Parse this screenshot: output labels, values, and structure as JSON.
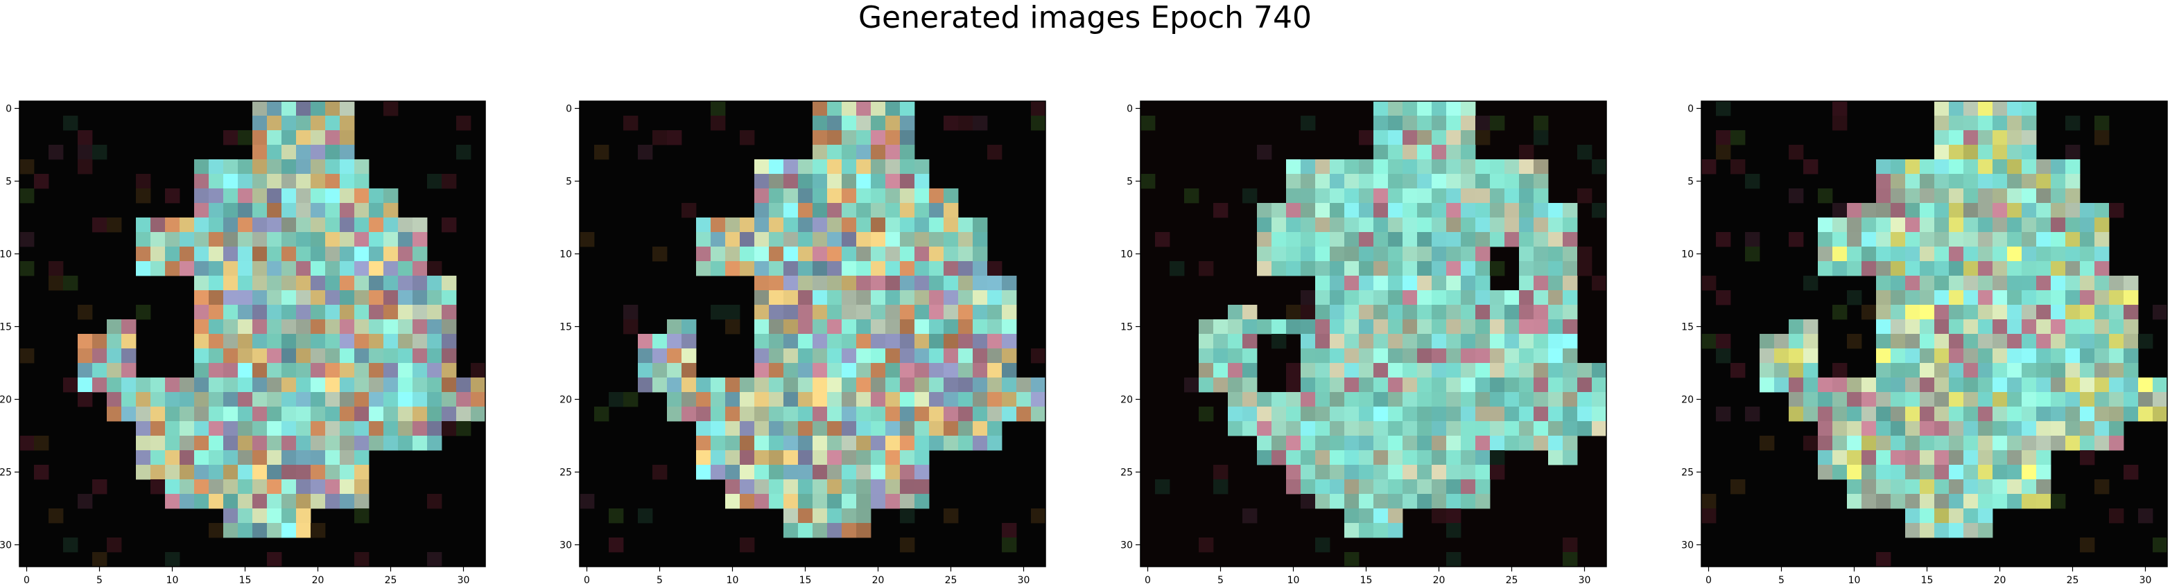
{
  "figure": {
    "title": "Generated images Epoch 740"
  },
  "chart_data": [
    {
      "type": "heatmap",
      "title": "",
      "x_ticks": [
        0,
        5,
        10,
        15,
        20,
        25,
        30
      ],
      "y_ticks": [
        0,
        5,
        10,
        15,
        20,
        25,
        30
      ],
      "xlim": [
        -0.5,
        31.5
      ],
      "ylim": [
        31.5,
        -0.5
      ],
      "grid_size": [
        32,
        32
      ],
      "background_color": "#050505",
      "shape_rows": [
        [
          16,
          23
        ],
        [
          16,
          23
        ],
        [
          16,
          23
        ],
        [
          16,
          23
        ],
        [
          12,
          24
        ],
        [
          12,
          24
        ],
        [
          12,
          26
        ],
        [
          12,
          26
        ],
        [
          8,
          28
        ],
        [
          8,
          28
        ],
        [
          8,
          28
        ],
        [
          8,
          28
        ],
        [
          8,
          30
        ],
        [
          8,
          30
        ],
        [
          8,
          30
        ],
        [
          6,
          30
        ],
        [
          4,
          30
        ],
        [
          4,
          30
        ],
        [
          4,
          30
        ],
        [
          4,
          32
        ],
        [
          6,
          32
        ],
        [
          6,
          32
        ],
        [
          8,
          29
        ],
        [
          8,
          29
        ],
        [
          8,
          26
        ],
        [
          8,
          26
        ],
        [
          10,
          26
        ],
        [
          10,
          26
        ],
        [
          14,
          20
        ],
        [
          14,
          20
        ],
        [
          0,
          0
        ],
        [
          0,
          0
        ]
      ],
      "holes": [
        [
          12,
          16,
          4,
          6
        ],
        [
          12,
          19,
          8,
          12
        ],
        [
          7,
          11,
          6,
          8
        ],
        [
          24,
          28,
          24,
          28
        ]
      ],
      "palette": [
        "#7ed9c6",
        "#8fe3cf",
        "#9ad1b8",
        "#6ec9c0",
        "#a7b6a3",
        "#c7d4a8",
        "#e0c37a",
        "#c9875a",
        "#6fa6b8",
        "#8a8fb8",
        "#b87a8c",
        "#7fe0e0"
      ],
      "seed": 11
    },
    {
      "type": "heatmap",
      "title": "",
      "x_ticks": [
        0,
        5,
        10,
        15,
        20,
        25,
        30
      ],
      "y_ticks": [
        0,
        5,
        10,
        15,
        20,
        25,
        30
      ],
      "xlim": [
        -0.5,
        31.5
      ],
      "ylim": [
        31.5,
        -0.5
      ],
      "grid_size": [
        32,
        32
      ],
      "background_color": "#050505",
      "shape_rows": [
        [
          16,
          23
        ],
        [
          16,
          23
        ],
        [
          16,
          23
        ],
        [
          16,
          23
        ],
        [
          12,
          24
        ],
        [
          12,
          24
        ],
        [
          12,
          26
        ],
        [
          12,
          26
        ],
        [
          8,
          28
        ],
        [
          8,
          28
        ],
        [
          8,
          28
        ],
        [
          8,
          28
        ],
        [
          8,
          30
        ],
        [
          8,
          30
        ],
        [
          8,
          30
        ],
        [
          6,
          30
        ],
        [
          4,
          30
        ],
        [
          4,
          30
        ],
        [
          4,
          30
        ],
        [
          4,
          32
        ],
        [
          6,
          32
        ],
        [
          6,
          32
        ],
        [
          8,
          29
        ],
        [
          8,
          29
        ],
        [
          8,
          26
        ],
        [
          8,
          26
        ],
        [
          10,
          26
        ],
        [
          10,
          26
        ],
        [
          14,
          20
        ],
        [
          14,
          20
        ],
        [
          0,
          0
        ],
        [
          0,
          0
        ]
      ],
      "holes": [
        [
          12,
          16,
          4,
          6
        ],
        [
          12,
          19,
          8,
          12
        ],
        [
          7,
          11,
          6,
          8
        ],
        [
          24,
          28,
          24,
          28
        ]
      ],
      "palette": [
        "#7ed9c6",
        "#8fe3cf",
        "#9ad1b8",
        "#6ec9c0",
        "#a7b6a3",
        "#c7d4a8",
        "#e0c37a",
        "#c9875a",
        "#6fa6b8",
        "#8a8fb8",
        "#b87a8c",
        "#7fe0e0"
      ],
      "seed": 23
    },
    {
      "type": "heatmap",
      "title": "",
      "x_ticks": [
        0,
        5,
        10,
        15,
        20,
        25,
        30
      ],
      "y_ticks": [
        0,
        5,
        10,
        15,
        20,
        25,
        30
      ],
      "xlim": [
        -0.5,
        31.5
      ],
      "ylim": [
        31.5,
        -0.5
      ],
      "grid_size": [
        32,
        32
      ],
      "background_color": "#0a0505",
      "shape_rows": [
        [
          16,
          23
        ],
        [
          16,
          23
        ],
        [
          16,
          23
        ],
        [
          16,
          23
        ],
        [
          10,
          28
        ],
        [
          10,
          28
        ],
        [
          10,
          28
        ],
        [
          8,
          30
        ],
        [
          8,
          30
        ],
        [
          8,
          30
        ],
        [
          8,
          30
        ],
        [
          8,
          30
        ],
        [
          8,
          30
        ],
        [
          8,
          30
        ],
        [
          6,
          30
        ],
        [
          4,
          30
        ],
        [
          4,
          30
        ],
        [
          4,
          30
        ],
        [
          4,
          32
        ],
        [
          4,
          32
        ],
        [
          6,
          32
        ],
        [
          6,
          32
        ],
        [
          6,
          32
        ],
        [
          8,
          30
        ],
        [
          8,
          30
        ],
        [
          10,
          26
        ],
        [
          10,
          26
        ],
        [
          12,
          24
        ],
        [
          14,
          18
        ],
        [
          14,
          18
        ],
        [
          0,
          0
        ],
        [
          0,
          0
        ]
      ],
      "holes": [
        [
          12,
          15,
          8,
          12
        ],
        [
          24,
          28,
          24,
          28
        ],
        [
          10,
          13,
          24,
          26
        ],
        [
          16,
          20,
          8,
          11
        ]
      ],
      "palette": [
        "#7ed9c6",
        "#8fe3cf",
        "#80dcc8",
        "#6ec9c0",
        "#9ad1b8",
        "#a0dcc4",
        "#86d4c2",
        "#7fe0e0",
        "#b87a8c",
        "#c4c0a0"
      ],
      "seed": 37
    },
    {
      "type": "heatmap",
      "title": "",
      "x_ticks": [
        0,
        5,
        10,
        15,
        20,
        25,
        30
      ],
      "y_ticks": [
        0,
        5,
        10,
        15,
        20,
        25,
        30
      ],
      "xlim": [
        -0.5,
        31.5
      ],
      "ylim": [
        31.5,
        -0.5
      ],
      "grid_size": [
        32,
        32
      ],
      "background_color": "#050505",
      "shape_rows": [
        [
          16,
          23
        ],
        [
          16,
          23
        ],
        [
          16,
          23
        ],
        [
          16,
          23
        ],
        [
          12,
          26
        ],
        [
          12,
          26
        ],
        [
          12,
          26
        ],
        [
          10,
          28
        ],
        [
          8,
          28
        ],
        [
          8,
          28
        ],
        [
          8,
          28
        ],
        [
          8,
          28
        ],
        [
          8,
          30
        ],
        [
          8,
          30
        ],
        [
          8,
          30
        ],
        [
          6,
          30
        ],
        [
          4,
          30
        ],
        [
          4,
          30
        ],
        [
          4,
          30
        ],
        [
          4,
          32
        ],
        [
          6,
          32
        ],
        [
          6,
          32
        ],
        [
          8,
          29
        ],
        [
          8,
          29
        ],
        [
          8,
          26
        ],
        [
          8,
          26
        ],
        [
          10,
          26
        ],
        [
          10,
          26
        ],
        [
          14,
          20
        ],
        [
          14,
          20
        ],
        [
          0,
          0
        ],
        [
          0,
          0
        ]
      ],
      "holes": [
        [
          12,
          16,
          4,
          6
        ],
        [
          12,
          19,
          8,
          12
        ],
        [
          7,
          11,
          6,
          8
        ],
        [
          24,
          28,
          24,
          28
        ]
      ],
      "palette": [
        "#7ed9c6",
        "#8fe3cf",
        "#80dcc8",
        "#6ec9c0",
        "#9ad1b8",
        "#a7b6a3",
        "#c7d4a8",
        "#7fe0e0",
        "#b87a8c",
        "#e0e070"
      ],
      "seed": 51
    }
  ]
}
